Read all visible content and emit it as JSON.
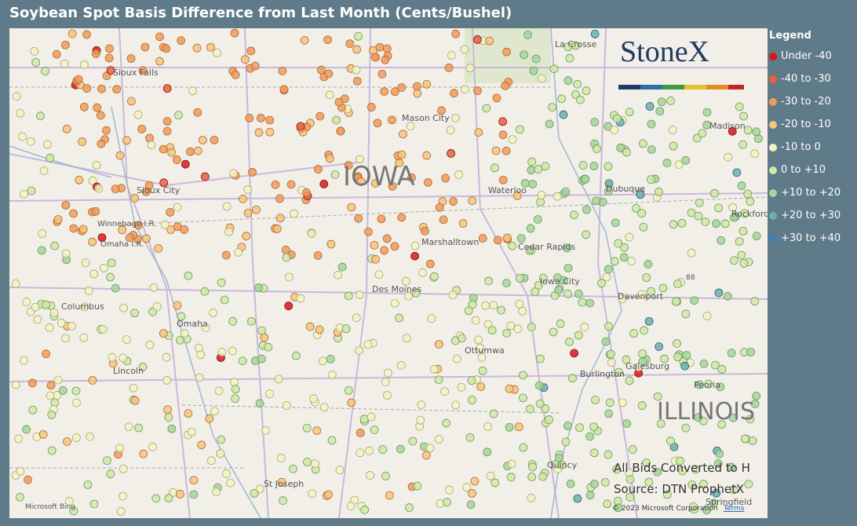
{
  "header": {
    "title": "Soybean Spot Basis Difference from Last Month (Cents/Bushel)"
  },
  "legend": {
    "title": "Legend",
    "items": [
      {
        "label": "Under -40",
        "color": "#d7191c"
      },
      {
        "label": "-40 to -30",
        "color": "#e8603c"
      },
      {
        "label": "-30 to -20",
        "color": "#f09a5a"
      },
      {
        "label": "-20 to -10",
        "color": "#f6c57e"
      },
      {
        "label": "-10 to 0",
        "color": "#f4f3c0"
      },
      {
        "label": "0 to +10",
        "color": "#d3e8a6"
      },
      {
        "label": "+10 to +20",
        "color": "#a6d49b"
      },
      {
        "label": "+20 to +30",
        "color": "#6fb0a8"
      },
      {
        "label": "+30 to +40",
        "color": "#3e7fb8"
      }
    ]
  },
  "map": {
    "labels": [
      "Sioux Falls",
      "La Crosse",
      "Mason City",
      "IOWA",
      "Sioux City",
      "Waterloo",
      "Dubuque",
      "Madison",
      "Rockford",
      "Winnebago I.R.",
      "Omaha I.R.",
      "Marshalltown",
      "Cedar Rapids",
      "Columbus",
      "Omaha",
      "Des Moines",
      "Iowa City",
      "Davenport",
      "Ottumwa",
      "Lincoln",
      "Galesburg",
      "Burlington",
      "Peoria",
      "ILLINOIS",
      "Quincy",
      "St Joseph",
      "Springfield",
      "88"
    ]
  },
  "logo": "StoneX",
  "notes": [
    "All Bids Converted to H",
    "Source: DTN ProphetX"
  ],
  "attribution": {
    "bing": "Microsoft Bing",
    "copyright": "© 2023 Microsoft Corporation",
    "terms": "Terms"
  }
}
